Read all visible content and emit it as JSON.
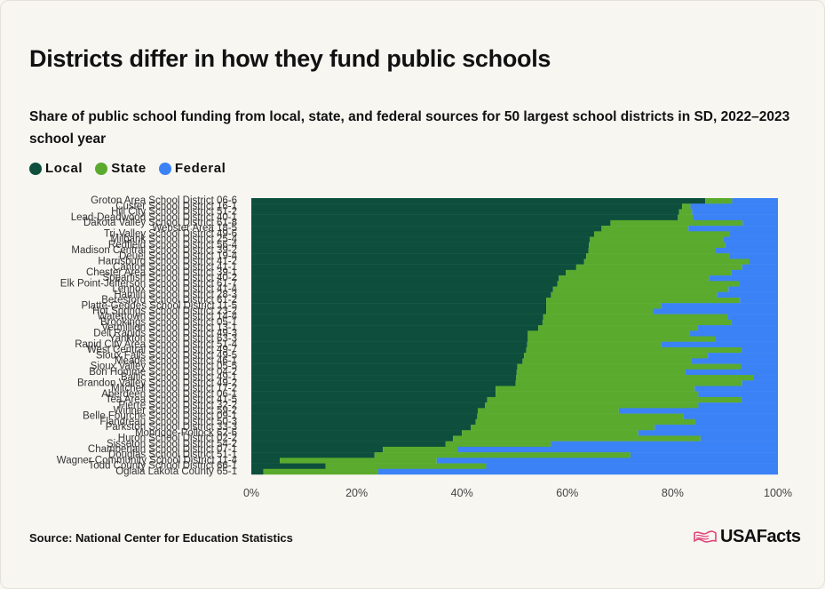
{
  "title": "Districts differ in how they fund public schools",
  "subtitle": "Share of public school funding from local, state, and federal sources for 50 largest school districts in SD, 2022–2023 school year",
  "source": "Source: National Center for Education Statistics",
  "logo": "USAFacts",
  "colors": {
    "local": "#0d4f3c",
    "state": "#5aaa2e",
    "federal": "#3b82f6"
  },
  "chart_data": {
    "type": "bar",
    "orientation": "horizontal",
    "stacked": true,
    "xlim": [
      0,
      100
    ],
    "xticks": [
      "0%",
      "20%",
      "40%",
      "60%",
      "80%",
      "100%"
    ],
    "legend": [
      "Local",
      "State",
      "Federal"
    ],
    "categories": [
      "Groton Area School District 06-6",
      "Custer School District 16-1",
      "Hill City School District 51-2",
      "Lead-Deadwood School District 40-1",
      "Dakota Valley School District 61-8",
      "Webster Area 18-5",
      "Tri-Valley School District 49-6",
      "Milbank School District 25-4",
      "Redfield School District 56-4",
      "Madison Central School District 39-2",
      "Deuel School District 19-4",
      "Harrisburg School District 41-2",
      "Canton School District 41-1",
      "Chester Area School District 39-1",
      "Spearfish School District 40-2",
      "Elk Point-Jefferson School District 61-7",
      "Lennox School District 41-4",
      "Hamlin School District 28-3",
      "Beresford School District 61-2",
      "Platte-Geddes School District 11-5",
      "Hot Springs School District 23-2",
      "Watertown School District 14-4",
      "Brookings School District 05-1",
      "Vermillion School District 13-1",
      "Dell Rapids School District 49-3",
      "Yankton School District 63-3",
      "Rapid City Area School District 51-4",
      "West Central School District 49-7",
      "Sioux Falls School District 49-5",
      "Meade School District 46-1",
      "Sioux Valley School District 05-5",
      "Bon Homme School District 04-2",
      "Baltic School District 49-1",
      "Brandon Valley School District 49-2",
      "Mitchell School District 17-2",
      "Aberdeen School District 06-1",
      "Tea Area School District 41-5",
      "Pierre School District 32-2",
      "Winner School District 59-2",
      "Belle Fourche School District 09-1",
      "Flandreau School District 50-3",
      "Parkston School District 33-3",
      "Mobridge-Pollock 62-6",
      "Huron School District 02-2",
      "Sisseton School District 54-2",
      "Chamberlain School District 07-1",
      "Douglas School District 51-1",
      "Wagner Community School District 11-4",
      "Todd County School District 66-1",
      "Oglala Lakota County 65-1"
    ],
    "series": [
      {
        "name": "Local",
        "values": [
          86.2,
          81.8,
          81.2,
          81.0,
          68.2,
          66.5,
          65.1,
          64.3,
          64.1,
          64.0,
          63.6,
          63.2,
          61.7,
          59.7,
          58.4,
          58.1,
          57.3,
          56.9,
          56.0,
          56.0,
          56.0,
          55.4,
          55.3,
          54.5,
          52.5,
          52.5,
          52.4,
          52.2,
          51.8,
          51.5,
          50.5,
          50.4,
          50.3,
          50.2,
          46.4,
          46.4,
          44.8,
          44.4,
          43.0,
          42.9,
          42.6,
          41.7,
          40.0,
          38.3,
          36.9,
          25.0,
          23.4,
          5.4,
          14.1,
          2.3
        ]
      },
      {
        "name": "State",
        "values": [
          5.1,
          1.6,
          2.5,
          2.9,
          25.1,
          16.5,
          25.7,
          25.3,
          25.9,
          24.2,
          27.2,
          31.4,
          31.5,
          31.5,
          28.5,
          34.5,
          33.3,
          31.5,
          36.8,
          21.8,
          20.3,
          35.0,
          35.8,
          30.2,
          30.7,
          35.7,
          25.4,
          40.9,
          34.9,
          32.0,
          42.5,
          32.0,
          45.0,
          43.0,
          37.8,
          38.5,
          48.3,
          40.5,
          26.8,
          39.2,
          41.7,
          34.9,
          33.5,
          47.0,
          20.0,
          14.2,
          48.6,
          29.8,
          30.5,
          21.8
        ]
      },
      {
        "name": "Federal",
        "values": [
          8.7,
          16.6,
          16.3,
          16.1,
          6.7,
          17.0,
          9.2,
          10.4,
          10.0,
          11.8,
          9.2,
          5.4,
          6.8,
          8.8,
          13.1,
          7.4,
          9.4,
          11.6,
          7.2,
          22.2,
          23.7,
          9.6,
          8.9,
          15.3,
          16.8,
          11.8,
          22.2,
          6.9,
          13.3,
          16.5,
          7.0,
          17.6,
          4.7,
          6.8,
          15.8,
          15.1,
          6.9,
          15.1,
          30.2,
          17.9,
          15.7,
          23.4,
          26.5,
          14.7,
          43.1,
          60.8,
          28.0,
          64.8,
          55.4,
          75.9
        ]
      }
    ]
  }
}
